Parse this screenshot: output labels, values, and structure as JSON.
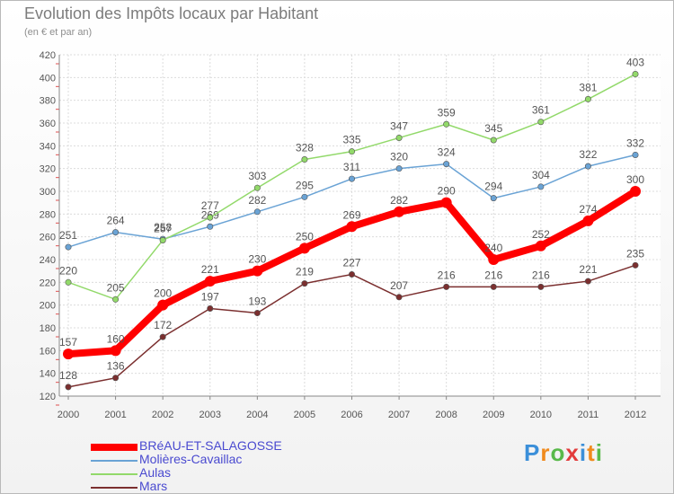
{
  "header": {
    "title": "Evolution des Impôts locaux par Habitant",
    "subtitle": "(en € et par an)"
  },
  "brand": {
    "logo": "Proxiti"
  },
  "chart_data": {
    "type": "line",
    "title": "Evolution des Impôts locaux par Habitant",
    "subtitle": "(en € et par an)",
    "xlabel": "",
    "ylabel": "",
    "categories": [
      "2000",
      "2001",
      "2002",
      "2003",
      "2004",
      "2005",
      "2006",
      "2007",
      "2008",
      "2009",
      "2010",
      "2011",
      "2012"
    ],
    "ylim": [
      120,
      420
    ],
    "yticks": [
      120,
      140,
      160,
      180,
      200,
      220,
      240,
      260,
      280,
      300,
      320,
      340,
      360,
      380,
      400,
      420
    ],
    "grid": true,
    "legend_position": "bottom-left",
    "series": [
      {
        "name": "BRéAU-ET-SALAGOSSE",
        "color": "#ff0000",
        "highlight": true,
        "values": [
          157,
          160,
          200,
          221,
          230,
          250,
          269,
          282,
          290,
          240,
          252,
          274,
          300
        ]
      },
      {
        "name": "Molières-Cavaillac",
        "color": "#6aa3d5",
        "highlight": false,
        "values": [
          251,
          264,
          258,
          269,
          282,
          295,
          311,
          320,
          324,
          294,
          304,
          322,
          332
        ]
      },
      {
        "name": "Aulas",
        "color": "#92d96a",
        "highlight": false,
        "values": [
          220,
          205,
          257,
          277,
          303,
          328,
          335,
          347,
          359,
          345,
          361,
          381,
          403
        ]
      },
      {
        "name": "Mars",
        "color": "#7b2f2f",
        "highlight": false,
        "values": [
          128,
          136,
          172,
          197,
          193,
          219,
          227,
          207,
          216,
          216,
          216,
          221,
          235
        ]
      }
    ]
  }
}
